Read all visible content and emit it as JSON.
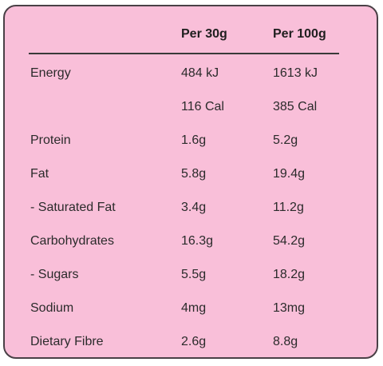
{
  "table": {
    "header": {
      "col1": "Per 30g",
      "col2": "Per 100g"
    },
    "rows": [
      {
        "label": "Energy",
        "per30": "484 kJ",
        "per100": "1613 kJ"
      },
      {
        "label": "",
        "per30": "116 Cal",
        "per100": "385 Cal"
      },
      {
        "label": "Protein",
        "per30": "1.6g",
        "per100": "5.2g"
      },
      {
        "label": "Fat",
        "per30": "5.8g",
        "per100": "19.4g"
      },
      {
        "label": "- Saturated Fat",
        "per30": "3.4g",
        "per100": "11.2g"
      },
      {
        "label": "Carbohydrates",
        "per30": "16.3g",
        "per100": "54.2g"
      },
      {
        "label": "- Sugars",
        "per30": "5.5g",
        "per100": "18.2g"
      },
      {
        "label": "Sodium",
        "per30": "4mg",
        "per100": "13mg"
      },
      {
        "label": "Dietary Fibre",
        "per30": "2.6g",
        "per100": "8.8g"
      }
    ]
  },
  "colors": {
    "card_background": "#f9bfd9",
    "card_border": "#4a4046",
    "text": "#2b2b2b",
    "rule": "#3a3a3a"
  }
}
